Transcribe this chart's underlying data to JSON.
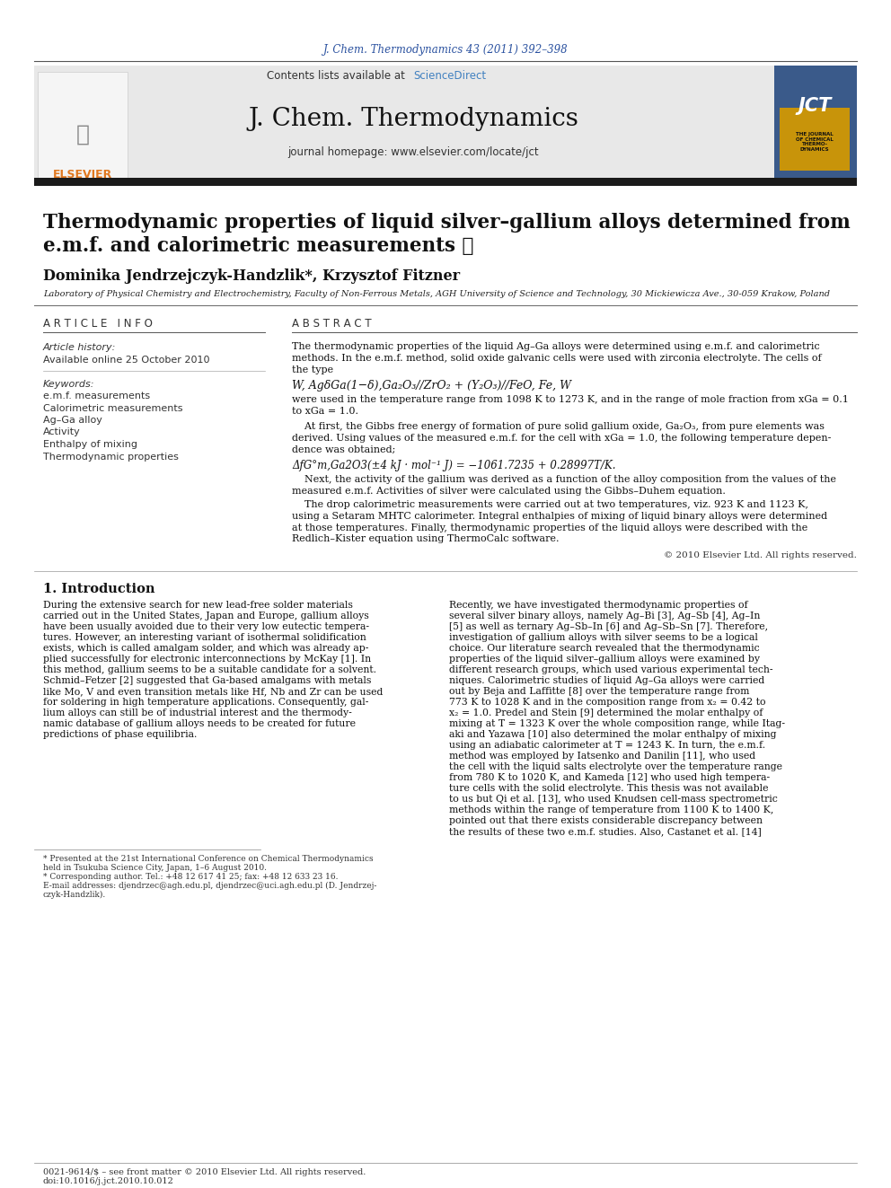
{
  "journal_ref": "J. Chem. Thermodynamics 43 (2011) 392–398",
  "contents_line_plain": "Contents lists available at ",
  "contents_line_link": "ScienceDirect",
  "journal_name": "J. Chem. Thermodynamics",
  "journal_homepage": "journal homepage: www.elsevier.com/locate/jct",
  "title_line1": "Thermodynamic properties of liquid silver–gallium alloys determined from",
  "title_line2": "e.m.f. and calorimetric measurements ☆",
  "authors": "Dominika Jendrzejczyk-Handzlik*, Krzysztof Fitzner",
  "affiliation": "Laboratory of Physical Chemistry and Electrochemistry, Faculty of Non-Ferrous Metals, AGH University of Science and Technology, 30 Mickiewicza Ave., 30-059 Krakow, Poland",
  "article_info_header": "A R T I C L E   I N F O",
  "article_history_label": "Article history:",
  "available_online": "Available online 25 October 2010",
  "keywords_label": "Keywords:",
  "keywords": [
    "e.m.f. measurements",
    "Calorimetric measurements",
    "Ag–Ga alloy",
    "Activity",
    "Enthalpy of mixing",
    "Thermodynamic properties"
  ],
  "abstract_header": "A B S T R A C T",
  "abstract_text1": "The thermodynamic properties of the liquid Ag–Ga alloys were determined using e.m.f. and calorimetric\nmethods. In the e.m.f. method, solid oxide galvanic cells were used with zirconia electrolyte. The cells of\nthe type",
  "cell_formula": "W, AgδGa(1−δ),Ga₂O₃//ZrO₂ + (Y₂O₃)//FeO, Fe, W",
  "abstract_text2": "were used in the temperature range from 1098 K to 1273 K, and in the range of mole fraction from xGa = 0.1\nto xGa = 1.0.",
  "abstract_text3": "    At first, the Gibbs free energy of formation of pure solid gallium oxide, Ga₂O₃, from pure elements was\nderived. Using values of the measured e.m.f. for the cell with xGa = 1.0, the following temperature depen-\ndence was obtained;",
  "equation": "ΔfG°m,Ga2O3(±4 kJ · mol⁻¹ J) = −1061.7235 + 0.28997T/K.",
  "abstract_text4": "    Next, the activity of the gallium was derived as a function of the alloy composition from the values of the\nmeasured e.m.f. Activities of silver were calculated using the Gibbs–Duhem equation.",
  "abstract_text5": "    The drop calorimetric measurements were carried out at two temperatures, viz. 923 K and 1123 K,\nusing a Setaram MHTC calorimeter. Integral enthalpies of mixing of liquid binary alloys were determined\nat those temperatures. Finally, thermodynamic properties of the liquid alloys were described with the\nRedlich–Kister equation using ThermoCalc software.",
  "copyright": "© 2010 Elsevier Ltd. All rights reserved.",
  "section1_header": "1. Introduction",
  "intro_col1": "During the extensive search for new lead-free solder materials\ncarried out in the United States, Japan and Europe, gallium alloys\nhave been usually avoided due to their very low eutectic tempera-\ntures. However, an interesting variant of isothermal solidification\nexists, which is called amalgam solder, and which was already ap-\nplied successfully for electronic interconnections by McKay [1]. In\nthis method, gallium seems to be a suitable candidate for a solvent.\nSchmid–Fetzer [2] suggested that Ga-based amalgams with metals\nlike Mo, V and even transition metals like Hf, Nb and Zr can be used\nfor soldering in high temperature applications. Consequently, gal-\nlium alloys can still be of industrial interest and the thermody-\nnamic database of gallium alloys needs to be created for future\npredictions of phase equilibria.",
  "intro_col2": "Recently, we have investigated thermodynamic properties of\nseveral silver binary alloys, namely Ag–Bi [3], Ag–Sb [4], Ag–In\n[5] as well as ternary Ag–Sb–In [6] and Ag–Sb–Sn [7]. Therefore,\ninvestigation of gallium alloys with silver seems to be a logical\nchoice. Our literature search revealed that the thermodynamic\nproperties of the liquid silver–gallium alloys were examined by\ndifferent research groups, which used various experimental tech-\nniques. Calorimetric studies of liquid Ag–Ga alloys were carried\nout by Beja and Laffitte [8] over the temperature range from\n773 K to 1028 K and in the composition range from x₂ = 0.42 to\nx₂ = 1.0. Predel and Stein [9] determined the molar enthalpy of\nmixing at T = 1323 K over the whole composition range, while Itag-\naki and Yazawa [10] also determined the molar enthalpy of mixing\nusing an adiabatic calorimeter at T = 1243 K. In turn, the e.m.f.\nmethod was employed by Iatsenko and Danilin [11], who used\nthe cell with the liquid salts electrolyte over the temperature range\nfrom 780 K to 1020 K, and Kameda [12] who used high tempera-\nture cells with the solid electrolyte. This thesis was not available\nto us but Qi et al. [13], who used Knudsen cell-mass spectrometric\nmethods within the range of temperature from 1100 K to 1400 K,\npointed out that there exists considerable discrepancy between\nthe results of these two e.m.f. studies. Also, Castanet et al. [14]",
  "footnote1": "* Presented at the 21st International Conference on Chemical Thermodynamics\nheld in Tsukuba Science City, Japan, 1–6 August 2010.",
  "footnote2": "* Corresponding author. Tel.: +48 12 617 41 25; fax: +48 12 633 23 16.",
  "footnote3": "E-mail addresses: djendrzec@agh.edu.pl, djendrzec@uci.agh.edu.pl (D. Jendrzej-\nczyk-Handzlik).",
  "bottom_line1": "0021-9614/$ – see front matter © 2010 Elsevier Ltd. All rights reserved.",
  "bottom_line2": "doi:10.1016/j.jct.2010.10.012",
  "bg_color": "#ffffff",
  "header_bg": "#e8e8e8",
  "blue_color": "#2b52a0",
  "orange_color": "#e07820",
  "link_color": "#4080c0",
  "black_bar_color": "#1a1a1a"
}
